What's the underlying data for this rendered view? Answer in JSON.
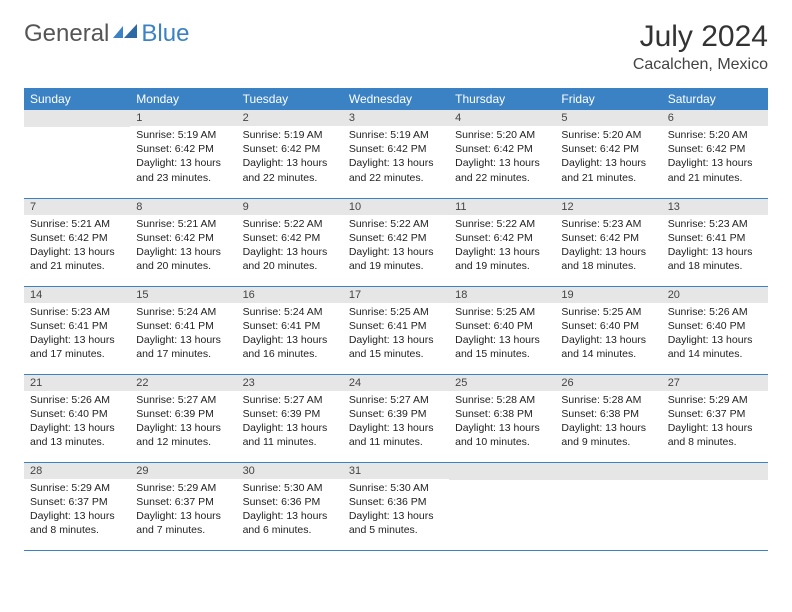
{
  "logo": {
    "textGeneral": "General",
    "textBlue": "Blue"
  },
  "title": "July 2024",
  "location": "Cacalchen, Mexico",
  "colors": {
    "headerBg": "#3b82c4",
    "headerText": "#ffffff",
    "dayNumBg": "#e6e6e6",
    "borderColor": "#3b82c4",
    "bodyText": "#222222"
  },
  "weekdays": [
    "Sunday",
    "Monday",
    "Tuesday",
    "Wednesday",
    "Thursday",
    "Friday",
    "Saturday"
  ],
  "weeks": [
    [
      null,
      {
        "n": "1",
        "sr": "5:19 AM",
        "ss": "6:42 PM",
        "dl": "13 hours and 23 minutes."
      },
      {
        "n": "2",
        "sr": "5:19 AM",
        "ss": "6:42 PM",
        "dl": "13 hours and 22 minutes."
      },
      {
        "n": "3",
        "sr": "5:19 AM",
        "ss": "6:42 PM",
        "dl": "13 hours and 22 minutes."
      },
      {
        "n": "4",
        "sr": "5:20 AM",
        "ss": "6:42 PM",
        "dl": "13 hours and 22 minutes."
      },
      {
        "n": "5",
        "sr": "5:20 AM",
        "ss": "6:42 PM",
        "dl": "13 hours and 21 minutes."
      },
      {
        "n": "6",
        "sr": "5:20 AM",
        "ss": "6:42 PM",
        "dl": "13 hours and 21 minutes."
      }
    ],
    [
      {
        "n": "7",
        "sr": "5:21 AM",
        "ss": "6:42 PM",
        "dl": "13 hours and 21 minutes."
      },
      {
        "n": "8",
        "sr": "5:21 AM",
        "ss": "6:42 PM",
        "dl": "13 hours and 20 minutes."
      },
      {
        "n": "9",
        "sr": "5:22 AM",
        "ss": "6:42 PM",
        "dl": "13 hours and 20 minutes."
      },
      {
        "n": "10",
        "sr": "5:22 AM",
        "ss": "6:42 PM",
        "dl": "13 hours and 19 minutes."
      },
      {
        "n": "11",
        "sr": "5:22 AM",
        "ss": "6:42 PM",
        "dl": "13 hours and 19 minutes."
      },
      {
        "n": "12",
        "sr": "5:23 AM",
        "ss": "6:42 PM",
        "dl": "13 hours and 18 minutes."
      },
      {
        "n": "13",
        "sr": "5:23 AM",
        "ss": "6:41 PM",
        "dl": "13 hours and 18 minutes."
      }
    ],
    [
      {
        "n": "14",
        "sr": "5:23 AM",
        "ss": "6:41 PM",
        "dl": "13 hours and 17 minutes."
      },
      {
        "n": "15",
        "sr": "5:24 AM",
        "ss": "6:41 PM",
        "dl": "13 hours and 17 minutes."
      },
      {
        "n": "16",
        "sr": "5:24 AM",
        "ss": "6:41 PM",
        "dl": "13 hours and 16 minutes."
      },
      {
        "n": "17",
        "sr": "5:25 AM",
        "ss": "6:41 PM",
        "dl": "13 hours and 15 minutes."
      },
      {
        "n": "18",
        "sr": "5:25 AM",
        "ss": "6:40 PM",
        "dl": "13 hours and 15 minutes."
      },
      {
        "n": "19",
        "sr": "5:25 AM",
        "ss": "6:40 PM",
        "dl": "13 hours and 14 minutes."
      },
      {
        "n": "20",
        "sr": "5:26 AM",
        "ss": "6:40 PM",
        "dl": "13 hours and 14 minutes."
      }
    ],
    [
      {
        "n": "21",
        "sr": "5:26 AM",
        "ss": "6:40 PM",
        "dl": "13 hours and 13 minutes."
      },
      {
        "n": "22",
        "sr": "5:27 AM",
        "ss": "6:39 PM",
        "dl": "13 hours and 12 minutes."
      },
      {
        "n": "23",
        "sr": "5:27 AM",
        "ss": "6:39 PM",
        "dl": "13 hours and 11 minutes."
      },
      {
        "n": "24",
        "sr": "5:27 AM",
        "ss": "6:39 PM",
        "dl": "13 hours and 11 minutes."
      },
      {
        "n": "25",
        "sr": "5:28 AM",
        "ss": "6:38 PM",
        "dl": "13 hours and 10 minutes."
      },
      {
        "n": "26",
        "sr": "5:28 AM",
        "ss": "6:38 PM",
        "dl": "13 hours and 9 minutes."
      },
      {
        "n": "27",
        "sr": "5:29 AM",
        "ss": "6:37 PM",
        "dl": "13 hours and 8 minutes."
      }
    ],
    [
      {
        "n": "28",
        "sr": "5:29 AM",
        "ss": "6:37 PM",
        "dl": "13 hours and 8 minutes."
      },
      {
        "n": "29",
        "sr": "5:29 AM",
        "ss": "6:37 PM",
        "dl": "13 hours and 7 minutes."
      },
      {
        "n": "30",
        "sr": "5:30 AM",
        "ss": "6:36 PM",
        "dl": "13 hours and 6 minutes."
      },
      {
        "n": "31",
        "sr": "5:30 AM",
        "ss": "6:36 PM",
        "dl": "13 hours and 5 minutes."
      },
      null,
      null,
      null
    ]
  ],
  "labels": {
    "sunrise": "Sunrise: ",
    "sunset": "Sunset: ",
    "daylight": "Daylight: "
  }
}
